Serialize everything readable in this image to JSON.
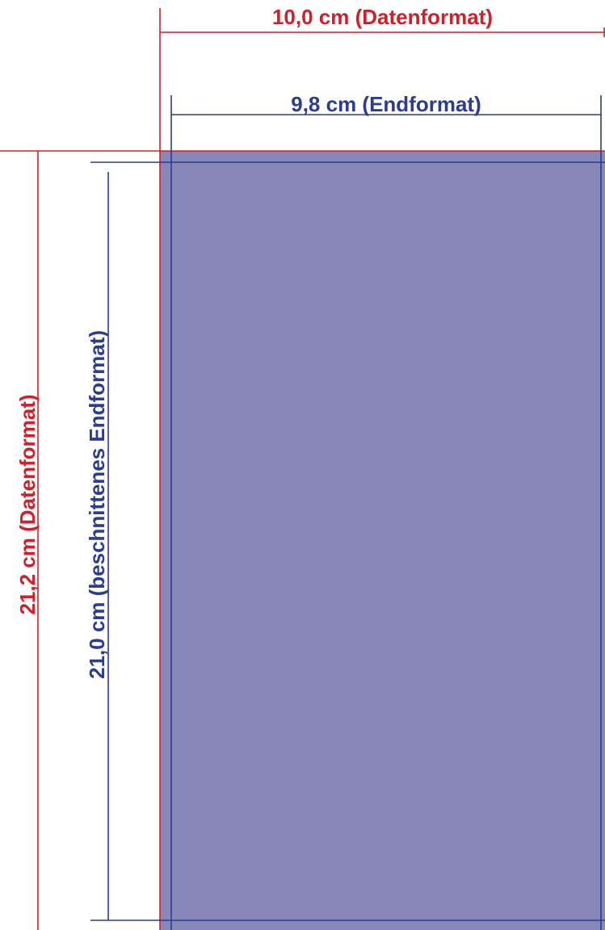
{
  "labels": {
    "data_width": "10,0 cm (Datenformat)",
    "final_width": "9,8 cm (Endformat)",
    "data_height": "21,2 cm (Datenformat)",
    "final_height": "21,0 cm (beschnittenes Endformat)"
  },
  "colors": {
    "data_format": "#d0202a",
    "final_format": "#2b3d8f",
    "fill": "#8788b8"
  }
}
